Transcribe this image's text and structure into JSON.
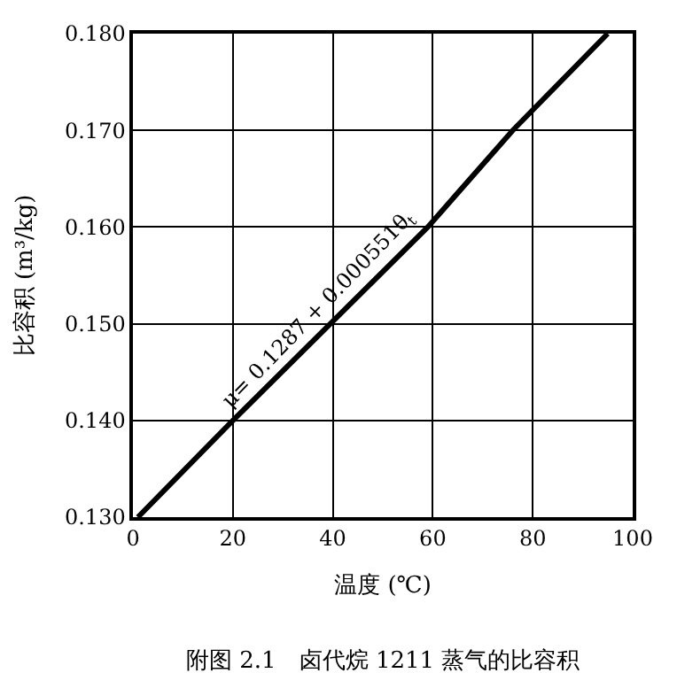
{
  "chart_data": {
    "type": "line",
    "xlabel": "温度 (℃)",
    "ylabel": "比容积 (m³/kg)",
    "x": [
      1,
      20,
      59,
      76,
      95
    ],
    "series": [
      {
        "color": "#000000",
        "values": [
          0.13,
          0.14,
          0.16,
          0.17,
          0.18
        ]
      }
    ],
    "xlim": [
      0,
      100
    ],
    "xticks": [
      0,
      20,
      40,
      60,
      80,
      100
    ],
    "ylim": [
      0.13,
      0.18
    ],
    "yticks": [
      {
        "value": 0.13,
        "label": "0.130"
      },
      {
        "value": 0.14,
        "label": "0.140"
      },
      {
        "value": 0.15,
        "label": "0.150"
      },
      {
        "value": 0.16,
        "label": "0.160"
      },
      {
        "value": 0.17,
        "label": "0.170"
      },
      {
        "value": 0.18,
        "label": "0.180"
      }
    ],
    "grid": true,
    "marker": "none",
    "line_style": "solid",
    "annotations": [
      {
        "text": "μ= 0.1287 + 0.000551θ$_{t}$",
        "x": 40,
        "y": 0.15
      },
      "附图 2.1　卤代烷 1211 蒸气的比容积"
    ]
  }
}
